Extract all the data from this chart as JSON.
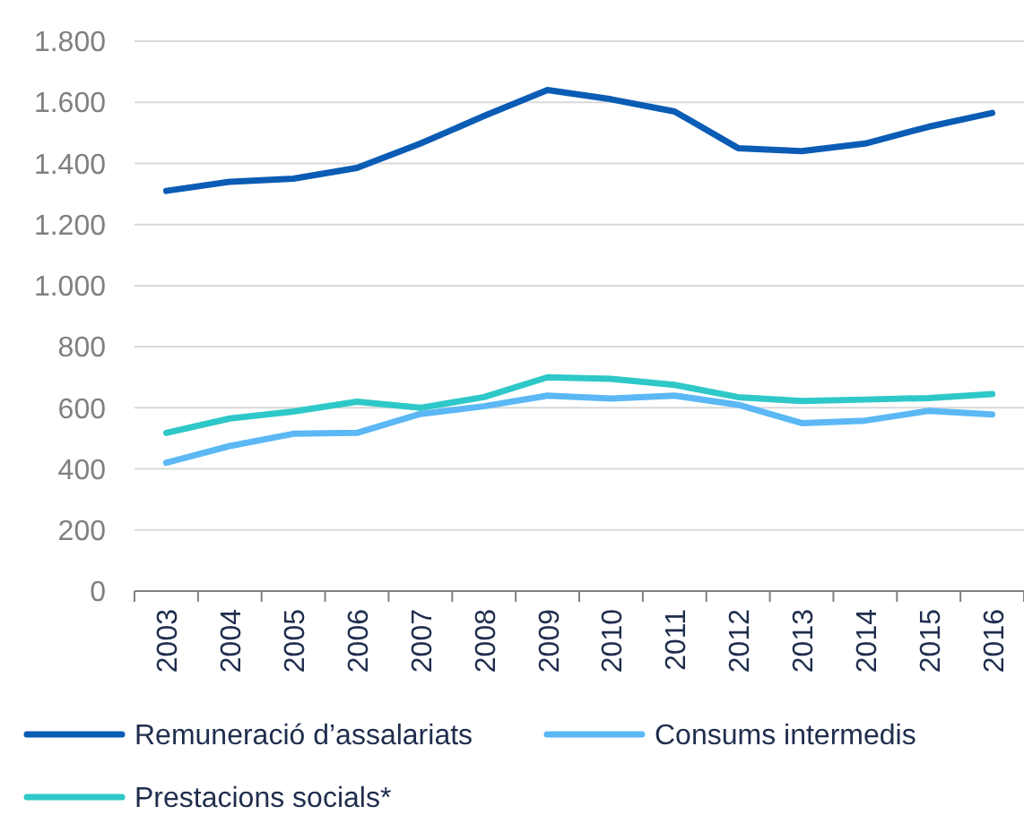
{
  "chart_data": {
    "type": "line",
    "categories": [
      "2003",
      "2004",
      "2005",
      "2006",
      "2007",
      "2008",
      "2009",
      "2010",
      "2011",
      "2012",
      "2013",
      "2014",
      "2015",
      "2016"
    ],
    "series": [
      {
        "name": "Remuneració d’assalariats",
        "color": "#0a5cb4",
        "values": [
          1310,
          1340,
          1350,
          1385,
          1465,
          1555,
          1640,
          1610,
          1570,
          1450,
          1440,
          1465,
          1520,
          1565
        ]
      },
      {
        "name": "Consums intermedis",
        "color": "#5bb8f5",
        "values": [
          420,
          475,
          515,
          518,
          580,
          605,
          640,
          630,
          640,
          610,
          550,
          558,
          590,
          578
        ]
      },
      {
        "name": "Prestacions socials*",
        "color": "#2ec8c8",
        "values": [
          518,
          565,
          588,
          620,
          600,
          635,
          700,
          695,
          675,
          635,
          622,
          627,
          632,
          645
        ]
      }
    ],
    "ylim": [
      0,
      1800
    ],
    "yticks": [
      0,
      200,
      400,
      600,
      800,
      {
        "value": 1000,
        "label": "1.000"
      },
      {
        "value": 1200,
        "label": "1.200"
      },
      {
        "value": 1400,
        "label": "1.400"
      },
      {
        "value": 1600,
        "label": "1.600"
      },
      {
        "value": 1800,
        "label": "1.800"
      }
    ],
    "grid": "y",
    "legend": "bottom",
    "line_style": "solid",
    "marker": "none"
  }
}
